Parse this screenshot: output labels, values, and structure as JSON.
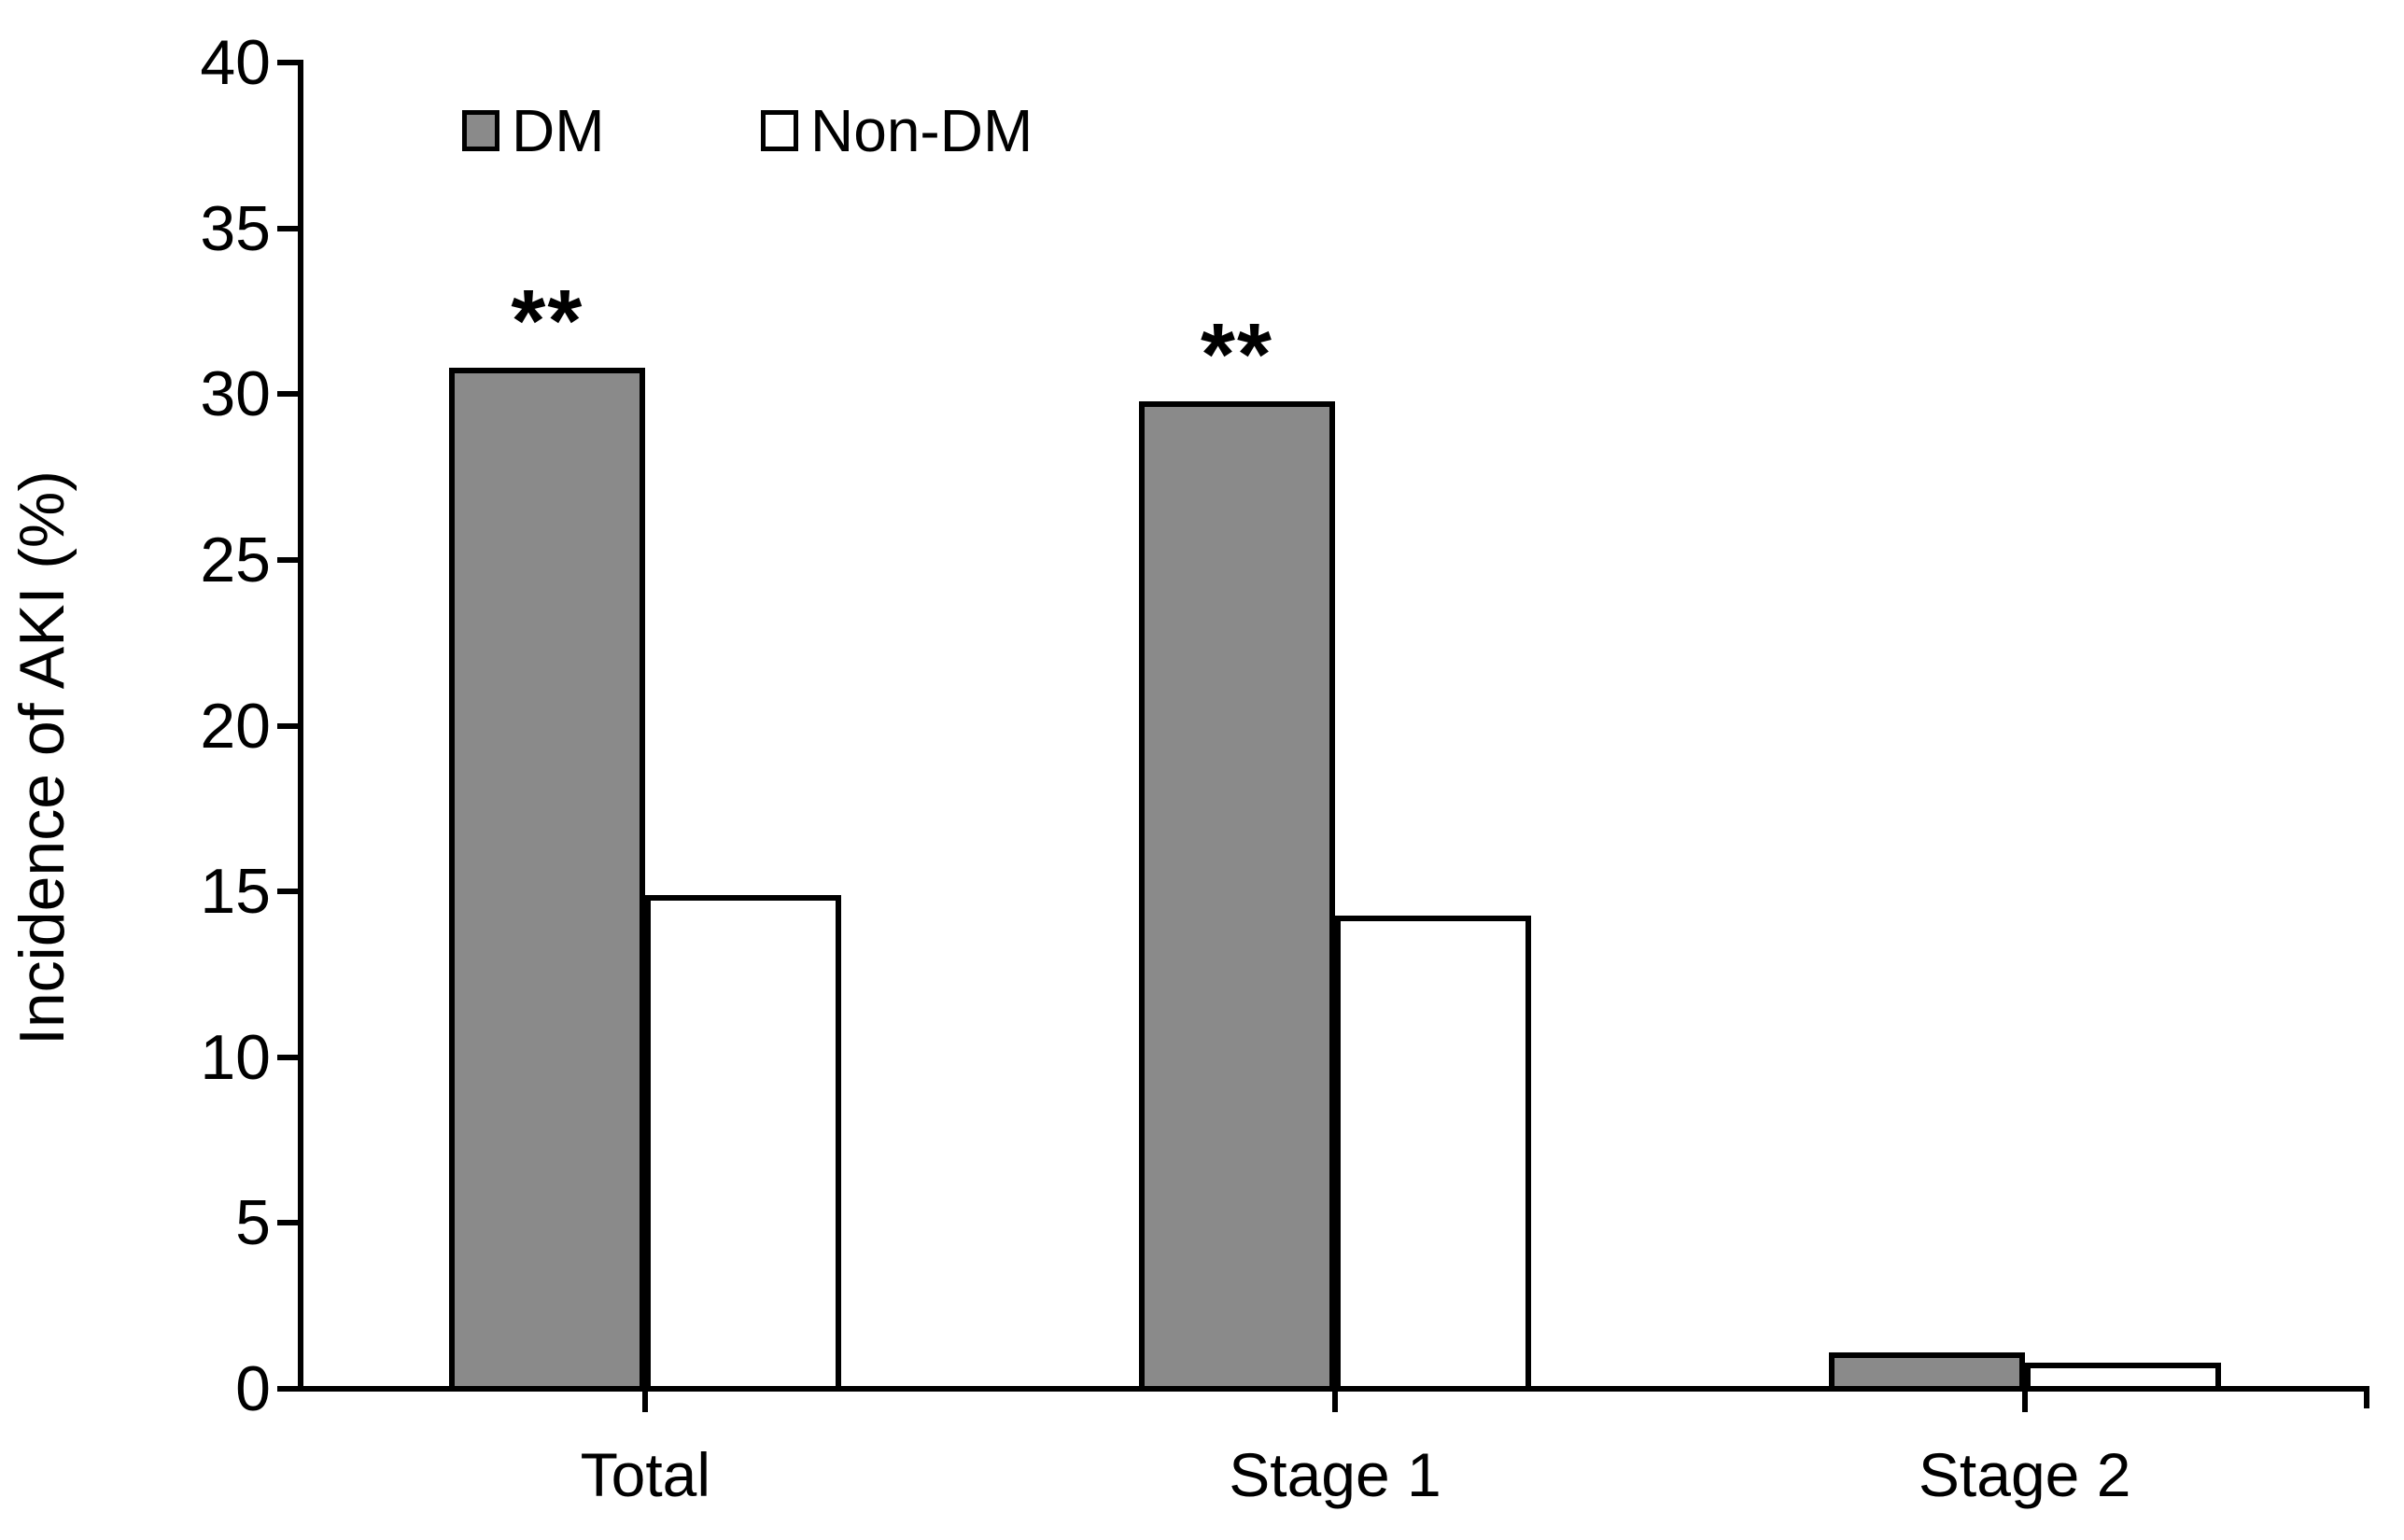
{
  "chart_data": {
    "type": "bar",
    "title": "",
    "ylabel": "Incidence of AKI (%)",
    "xlabel": "",
    "ylim": [
      0,
      40
    ],
    "yticks": [
      0,
      5,
      10,
      15,
      20,
      25,
      30,
      35,
      40
    ],
    "grid": false,
    "legend_position": "top-left-inside",
    "categories": [
      "Total",
      "Stage 1",
      "Stage 2"
    ],
    "series": [
      {
        "name": "DM",
        "values": [
          30.7,
          29.7,
          1.0
        ],
        "fill": "#8a8a8a"
      },
      {
        "name": "Non-DM",
        "values": [
          14.8,
          14.2,
          0.7
        ],
        "fill": "#ffffff"
      }
    ],
    "annotations": [
      {
        "text": "**",
        "category": "Total",
        "series": "DM"
      },
      {
        "text": "**",
        "category": "Stage 1",
        "series": "DM"
      }
    ]
  },
  "colors": {
    "axis": "#000000",
    "bar_outline": "#000000",
    "dm_fill": "#8a8a8a",
    "nondm_fill": "#ffffff",
    "background": "#ffffff"
  }
}
